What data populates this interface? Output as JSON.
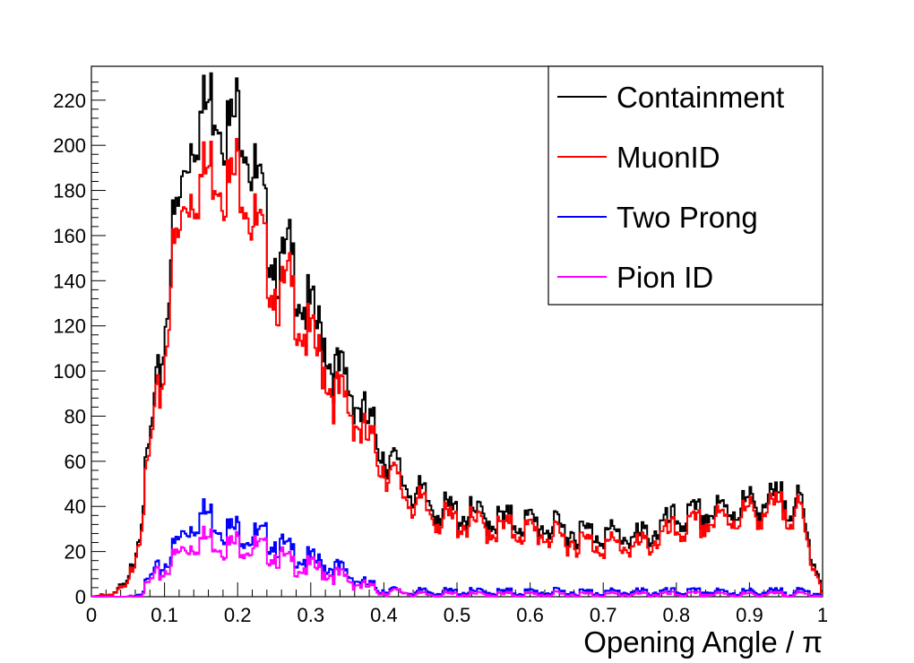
{
  "chart_data": {
    "type": "line",
    "style": "step-histogram",
    "xlabel": "Opening Angle / π",
    "ylabel": "",
    "xlim": [
      0,
      1
    ],
    "ylim": [
      0,
      235
    ],
    "x_ticks": [
      "0",
      "0.1",
      "0.2",
      "0.3",
      "0.4",
      "0.5",
      "0.6",
      "0.7",
      "0.8",
      "0.9",
      "1"
    ],
    "y_ticks": [
      "0",
      "20",
      "40",
      "60",
      "80",
      "100",
      "120",
      "140",
      "160",
      "180",
      "200",
      "220"
    ],
    "legend_position": "top-right",
    "grid": false,
    "x": [
      0.0,
      0.025,
      0.05,
      0.065,
      0.075,
      0.085,
      0.1,
      0.11,
      0.12,
      0.13,
      0.14,
      0.15,
      0.16,
      0.17,
      0.18,
      0.19,
      0.2,
      0.21,
      0.22,
      0.23,
      0.24,
      0.25,
      0.26,
      0.27,
      0.28,
      0.29,
      0.3,
      0.31,
      0.32,
      0.33,
      0.34,
      0.35,
      0.36,
      0.37,
      0.38,
      0.39,
      0.4,
      0.41,
      0.42,
      0.43,
      0.44,
      0.45,
      0.46,
      0.47,
      0.48,
      0.5,
      0.52,
      0.55,
      0.6,
      0.65,
      0.7,
      0.75,
      0.8,
      0.85,
      0.9,
      0.93,
      0.95,
      0.97,
      0.98,
      0.99,
      1.0
    ],
    "series": [
      {
        "name": "Containment",
        "color": "#000000",
        "values": [
          0,
          1,
          5,
          30,
          55,
          80,
          115,
          160,
          172,
          195,
          208,
          212,
          218,
          222,
          212,
          205,
          216,
          210,
          188,
          180,
          162,
          152,
          143,
          152,
          142,
          130,
          125,
          118,
          115,
          100,
          98,
          95,
          88,
          82,
          75,
          72,
          64,
          60,
          55,
          50,
          47,
          44,
          42,
          40,
          38,
          37,
          36,
          34,
          33,
          29,
          28,
          26,
          34,
          37,
          41,
          42,
          43,
          40,
          25,
          15,
          4
        ]
      },
      {
        "name": "MuonID",
        "color": "#ff0000",
        "values": [
          0,
          1,
          4,
          28,
          50,
          75,
          102,
          148,
          158,
          178,
          182,
          184,
          189,
          192,
          186,
          180,
          190,
          184,
          166,
          160,
          148,
          138,
          131,
          138,
          128,
          118,
          113,
          106,
          102,
          90,
          88,
          85,
          80,
          72,
          68,
          64,
          58,
          54,
          49,
          45,
          42,
          40,
          38,
          36,
          34,
          33,
          32,
          30,
          29,
          25,
          23,
          22,
          29,
          33,
          37,
          38,
          39,
          36,
          22,
          13,
          3
        ]
      },
      {
        "name": "Two Prong",
        "color": "#0000ff",
        "values": [
          0,
          0,
          0,
          2,
          5,
          10,
          14,
          20,
          25,
          30,
          33,
          36,
          37,
          34,
          31,
          29,
          30,
          28,
          27,
          26,
          26,
          25,
          22,
          20,
          19,
          17,
          16,
          15,
          14,
          13,
          12,
          10,
          8,
          6,
          5,
          4,
          3,
          3,
          2,
          2,
          2,
          2,
          2,
          2,
          2,
          2,
          2,
          2,
          2,
          2,
          2,
          2,
          2,
          2,
          2,
          2,
          2,
          2,
          2,
          2,
          1
        ]
      },
      {
        "name": "Pion ID",
        "color": "#ff00ff",
        "values": [
          0,
          0,
          0,
          1,
          4,
          8,
          11,
          16,
          19,
          22,
          24,
          25,
          26,
          25,
          23,
          22,
          24,
          23,
          22,
          21,
          20,
          19,
          17,
          15,
          14,
          13,
          13,
          12,
          11,
          10,
          9,
          8,
          6,
          5,
          4,
          3,
          2,
          2,
          2,
          2,
          1,
          1,
          1,
          1,
          1,
          1,
          1,
          1,
          1,
          1,
          1,
          1,
          1,
          1,
          1,
          1,
          1,
          1,
          1,
          1,
          0
        ]
      }
    ]
  }
}
